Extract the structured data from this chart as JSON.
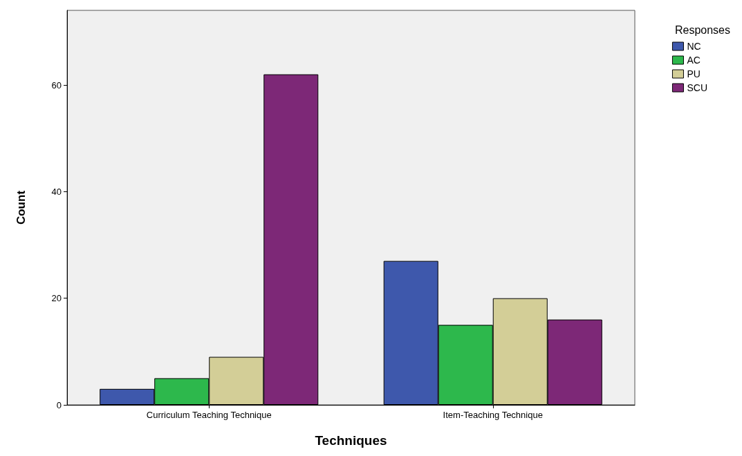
{
  "chart_data": {
    "type": "bar",
    "xlabel": "Techniques",
    "ylabel": "Count",
    "legend_title": "Responses",
    "categories": [
      "Curriculum Teaching Technique",
      "Item-Teaching Technique"
    ],
    "series": [
      {
        "name": "NC",
        "color": "#3e58ac",
        "values": [
          3,
          27
        ]
      },
      {
        "name": "AC",
        "color": "#2db84c",
        "values": [
          5,
          15
        ]
      },
      {
        "name": "PU",
        "color": "#d3ce97",
        "values": [
          9,
          20
        ]
      },
      {
        "name": "SCU",
        "color": "#7d2877",
        "values": [
          62,
          16
        ]
      }
    ],
    "ylim": [
      0,
      74
    ],
    "yticks": [
      0,
      20,
      40,
      60
    ],
    "grid": false,
    "legend": "top right"
  }
}
